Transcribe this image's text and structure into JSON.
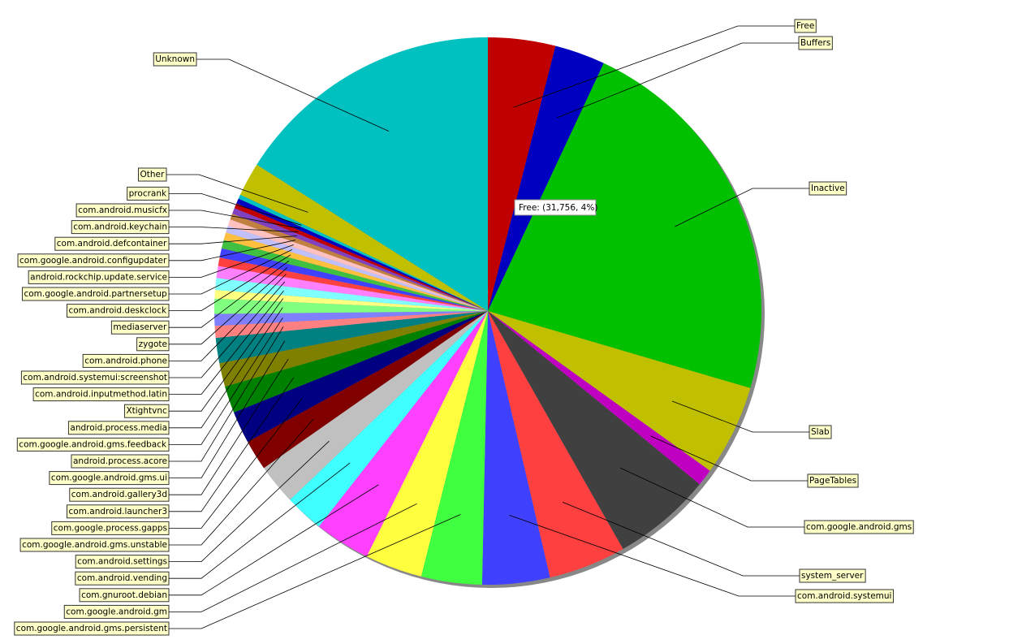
{
  "chart_data": {
    "type": "pie",
    "tooltip": "Free: (31,756, 4%)",
    "categories": [
      "Free",
      "Buffers",
      "Inactive",
      "Slab",
      "PageTables",
      "com.google.android.gms",
      "system_server",
      "com.android.systemui",
      "com.google.android.gms.persistent",
      "com.google.android.gm",
      "com.gnuroot.debian",
      "com.android.vending",
      "com.android.settings",
      "com.google.android.gms.unstable",
      "com.google.process.gapps",
      "com.android.launcher3",
      "com.android.gallery3d",
      "com.google.android.gms.ui",
      "android.process.acore",
      "com.google.android.gms.feedback",
      "android.process.media",
      "Xtightvnc",
      "com.android.inputmethod.latin",
      "com.android.systemui:screenshot",
      "com.android.phone",
      "zygote",
      "mediaserver",
      "com.android.deskclock",
      "com.google.android.partnersetup",
      "android.rockchip.update.service",
      "com.google.android.configupdater",
      "com.android.defcontainer",
      "com.android.keychain",
      "com.android.musicfx",
      "procrank",
      "Other",
      "Unknown"
    ],
    "values": [
      31756,
      23800,
      180200,
      42900,
      7900,
      46800,
      36500,
      31800,
      28600,
      27000,
      26200,
      18300,
      19100,
      14300,
      15100,
      12700,
      11100,
      11900,
      5600,
      5600,
      7100,
      4000,
      5600,
      5600,
      4000,
      4400,
      4000,
      3600,
      3200,
      3200,
      2800,
      2800,
      2400,
      2400,
      2000,
      15900,
      127800
    ],
    "colors": [
      "#c00000",
      "#0000c0",
      "#00c000",
      "#c0c000",
      "#c000c0",
      "#404040",
      "#ff4040",
      "#4040ff",
      "#40ff40",
      "#ffff40",
      "#ff40ff",
      "#40ffff",
      "#c0c0c0",
      "#800000",
      "#000080",
      "#008000",
      "#808000",
      "#008080",
      "#ff8080",
      "#8080ff",
      "#80ff80",
      "#ffff80",
      "#80ffff",
      "#ff80ff",
      "#ff4040",
      "#4040ff",
      "#40c040",
      "#ffc040",
      "#c0c0ff",
      "#ffc0c0",
      "#c08040",
      "#8040c0",
      "#c00000",
      "#0000c0",
      "#00c0c0",
      "#c0c000",
      "#00c0c0"
    ]
  }
}
